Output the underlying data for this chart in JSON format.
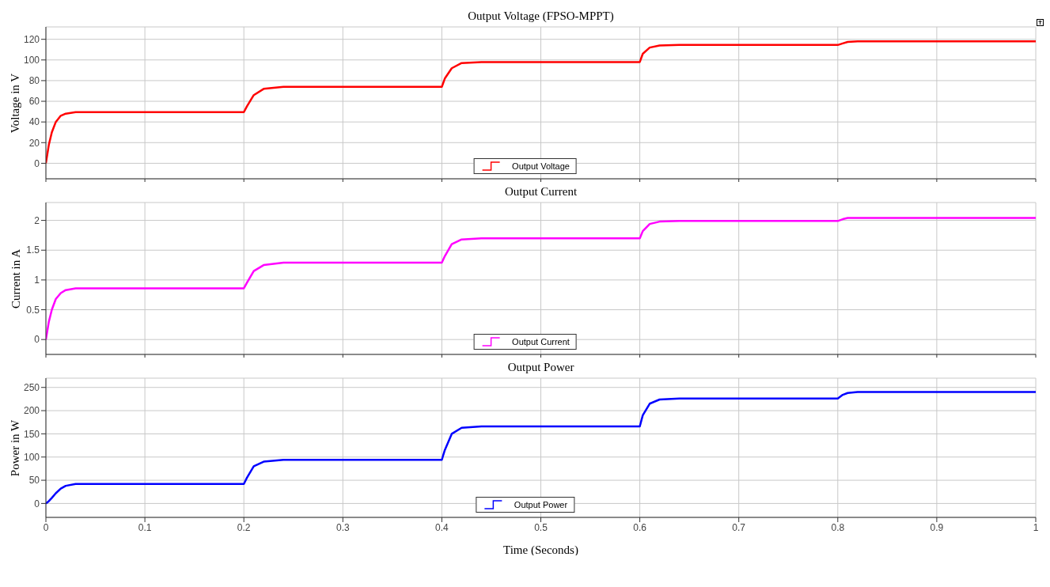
{
  "chart_data": [
    {
      "type": "line",
      "title": "Output Voltage (FPSO-MPPT)",
      "ylabel": "Voltage in V",
      "x": [
        0,
        0.003,
        0.006,
        0.01,
        0.015,
        0.02,
        0.03,
        0.05,
        0.2,
        0.203,
        0.21,
        0.22,
        0.24,
        0.4,
        0.403,
        0.41,
        0.42,
        0.44,
        0.6,
        0.603,
        0.61,
        0.62,
        0.64,
        0.8,
        0.805,
        0.81,
        0.82,
        1.0
      ],
      "series": [
        {
          "name": "Output Voltage",
          "color": "#ff0000",
          "values": [
            0,
            18,
            30,
            40,
            46,
            48,
            49.5,
            49.5,
            49.5,
            55,
            66,
            72,
            74,
            74,
            82,
            92,
            97,
            98,
            98,
            106,
            112,
            114,
            114.5,
            114.5,
            116,
            117.5,
            118,
            118
          ]
        }
      ],
      "xlim": [
        0,
        1
      ],
      "xticks": [
        0,
        0.1,
        0.2,
        0.3,
        0.4,
        0.5,
        0.6,
        0.7,
        0.8,
        0.9,
        1
      ],
      "ylim": [
        -15,
        132
      ],
      "yticks": [
        0,
        20,
        40,
        60,
        80,
        100,
        120
      ],
      "grid": true,
      "legend": "bottom",
      "marker": "none",
      "line_style": "solid",
      "tick_labels": "y"
    },
    {
      "type": "line",
      "title": "Output Current",
      "ylabel": "Current in A",
      "x": [
        0,
        0.003,
        0.006,
        0.01,
        0.015,
        0.02,
        0.03,
        0.05,
        0.2,
        0.203,
        0.21,
        0.22,
        0.24,
        0.4,
        0.403,
        0.41,
        0.42,
        0.44,
        0.6,
        0.603,
        0.61,
        0.62,
        0.64,
        0.8,
        0.805,
        0.81,
        0.82,
        1.0
      ],
      "series": [
        {
          "name": "Output Current",
          "color": "#ff00ff",
          "values": [
            0,
            0.3,
            0.5,
            0.68,
            0.78,
            0.83,
            0.86,
            0.86,
            0.86,
            0.95,
            1.15,
            1.25,
            1.29,
            1.29,
            1.4,
            1.6,
            1.68,
            1.7,
            1.7,
            1.82,
            1.94,
            1.98,
            1.99,
            1.99,
            2.02,
            2.04,
            2.04,
            2.04
          ]
        }
      ],
      "xlim": [
        0,
        1
      ],
      "xticks": [
        0,
        0.1,
        0.2,
        0.3,
        0.4,
        0.5,
        0.6,
        0.7,
        0.8,
        0.9,
        1
      ],
      "ylim": [
        -0.25,
        2.3
      ],
      "yticks": [
        0,
        0.5,
        1,
        1.5,
        2
      ],
      "grid": true,
      "legend": "bottom",
      "marker": "none",
      "line_style": "solid",
      "tick_labels": "y"
    },
    {
      "type": "line",
      "title": "Output Power",
      "ylabel": "Power in W",
      "xlabel": "Time (Seconds)",
      "x": [
        0,
        0.003,
        0.006,
        0.01,
        0.015,
        0.02,
        0.03,
        0.05,
        0.2,
        0.203,
        0.21,
        0.22,
        0.24,
        0.4,
        0.403,
        0.41,
        0.42,
        0.44,
        0.6,
        0.603,
        0.61,
        0.62,
        0.64,
        0.8,
        0.805,
        0.81,
        0.82,
        1.0
      ],
      "series": [
        {
          "name": "Output Power",
          "color": "#0000ff",
          "values": [
            0,
            5,
            12,
            22,
            32,
            38,
            42,
            42,
            42,
            55,
            80,
            90,
            94,
            94,
            115,
            150,
            163,
            166,
            166,
            190,
            215,
            224,
            226,
            226,
            234,
            238,
            240,
            240
          ]
        }
      ],
      "xlim": [
        0,
        1
      ],
      "xticks": [
        0,
        0.1,
        0.2,
        0.3,
        0.4,
        0.5,
        0.6,
        0.7,
        0.8,
        0.9,
        1
      ],
      "ylim": [
        -30,
        270
      ],
      "yticks": [
        0,
        50,
        100,
        150,
        200,
        250
      ],
      "grid": true,
      "legend": "bottom",
      "marker": "none",
      "line_style": "solid"
    }
  ]
}
